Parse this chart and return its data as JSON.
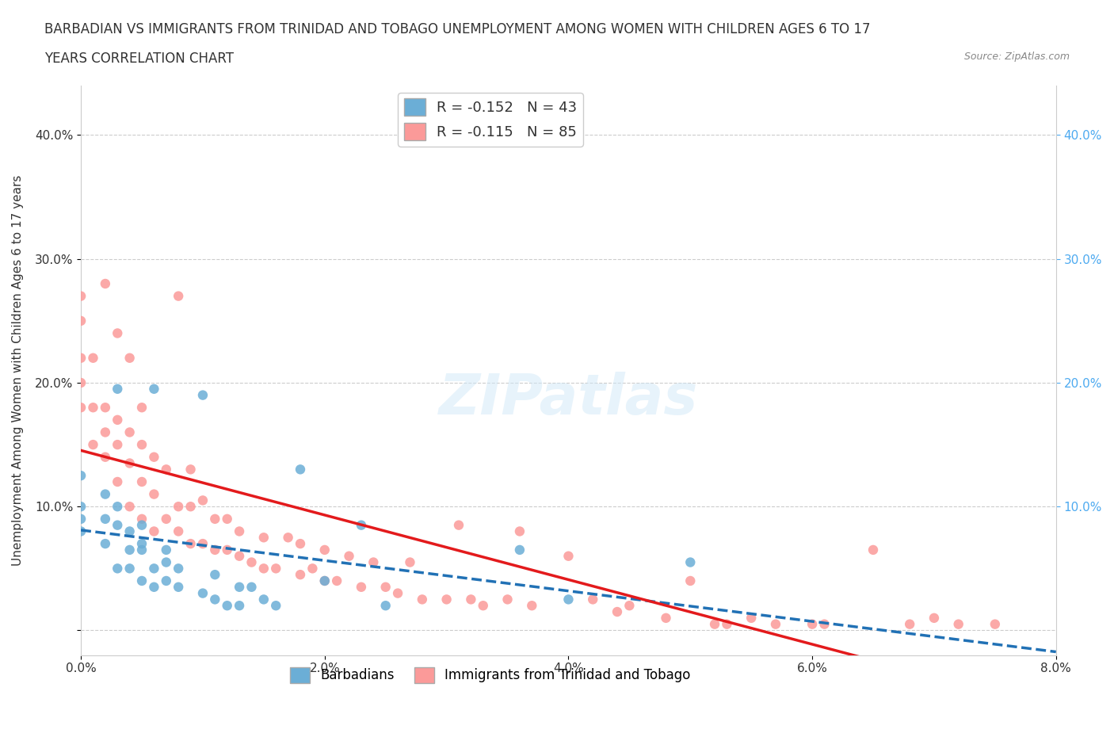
{
  "title_line1": "BARBADIAN VS IMMIGRANTS FROM TRINIDAD AND TOBAGO UNEMPLOYMENT AMONG WOMEN WITH CHILDREN AGES 6 TO 17",
  "title_line2": "YEARS CORRELATION CHART",
  "source": "Source: ZipAtlas.com",
  "xlabel": "",
  "ylabel": "Unemployment Among Women with Children Ages 6 to 17 years",
  "xlim": [
    0.0,
    0.08
  ],
  "ylim": [
    -0.02,
    0.44
  ],
  "xticks": [
    0.0,
    0.02,
    0.04,
    0.06,
    0.08
  ],
  "xticklabels": [
    "0.0%",
    "2.0%",
    "4.0%",
    "6.0%",
    "8.0%"
  ],
  "yticks": [
    0.0,
    0.1,
    0.2,
    0.3,
    0.4
  ],
  "yticklabels": [
    "",
    "10.0%",
    "20.0%",
    "30.0%",
    "40.0%"
  ],
  "right_yticks": [
    0.1,
    0.2,
    0.3,
    0.4
  ],
  "right_yticklabels": [
    "10.0%",
    "20.0%",
    "30.0%",
    "40.0%"
  ],
  "barbadian_color": "#6baed6",
  "trinidad_color": "#fb9a99",
  "barbadian_line_color": "#2171b5",
  "trinidad_line_color": "#e31a1c",
  "barbadian_R": -0.152,
  "barbadian_N": 43,
  "trinidad_R": -0.115,
  "trinidad_N": 85,
  "legend_label_1": "Barbadians",
  "legend_label_2": "Immigrants from Trinidad and Tobago",
  "watermark": "ZIPatlas",
  "barbadian_x": [
    0.0,
    0.0,
    0.0,
    0.0,
    0.002,
    0.002,
    0.002,
    0.003,
    0.003,
    0.003,
    0.003,
    0.004,
    0.004,
    0.004,
    0.005,
    0.005,
    0.005,
    0.005,
    0.006,
    0.006,
    0.006,
    0.007,
    0.007,
    0.007,
    0.008,
    0.008,
    0.01,
    0.01,
    0.011,
    0.011,
    0.012,
    0.013,
    0.013,
    0.014,
    0.015,
    0.016,
    0.018,
    0.02,
    0.023,
    0.025,
    0.036,
    0.04,
    0.05
  ],
  "barbadian_y": [
    0.08,
    0.09,
    0.1,
    0.125,
    0.07,
    0.09,
    0.11,
    0.05,
    0.085,
    0.1,
    0.195,
    0.05,
    0.065,
    0.08,
    0.04,
    0.065,
    0.07,
    0.085,
    0.035,
    0.05,
    0.195,
    0.04,
    0.055,
    0.065,
    0.035,
    0.05,
    0.03,
    0.19,
    0.025,
    0.045,
    0.02,
    0.02,
    0.035,
    0.035,
    0.025,
    0.02,
    0.13,
    0.04,
    0.085,
    0.02,
    0.065,
    0.025,
    0.055
  ],
  "trinidad_x": [
    0.0,
    0.0,
    0.0,
    0.0,
    0.0,
    0.001,
    0.001,
    0.001,
    0.002,
    0.002,
    0.002,
    0.002,
    0.003,
    0.003,
    0.003,
    0.003,
    0.004,
    0.004,
    0.004,
    0.004,
    0.005,
    0.005,
    0.005,
    0.005,
    0.006,
    0.006,
    0.006,
    0.007,
    0.007,
    0.008,
    0.008,
    0.008,
    0.009,
    0.009,
    0.009,
    0.01,
    0.01,
    0.011,
    0.011,
    0.012,
    0.012,
    0.013,
    0.013,
    0.014,
    0.015,
    0.015,
    0.016,
    0.017,
    0.018,
    0.018,
    0.019,
    0.02,
    0.02,
    0.021,
    0.022,
    0.023,
    0.024,
    0.025,
    0.026,
    0.027,
    0.028,
    0.03,
    0.031,
    0.032,
    0.033,
    0.035,
    0.036,
    0.037,
    0.04,
    0.042,
    0.044,
    0.045,
    0.048,
    0.05,
    0.052,
    0.053,
    0.055,
    0.057,
    0.06,
    0.061,
    0.065,
    0.068,
    0.07,
    0.072,
    0.075
  ],
  "trinidad_y": [
    0.18,
    0.2,
    0.22,
    0.25,
    0.27,
    0.15,
    0.18,
    0.22,
    0.14,
    0.16,
    0.18,
    0.28,
    0.12,
    0.15,
    0.17,
    0.24,
    0.1,
    0.135,
    0.16,
    0.22,
    0.09,
    0.12,
    0.15,
    0.18,
    0.08,
    0.11,
    0.14,
    0.09,
    0.13,
    0.08,
    0.1,
    0.27,
    0.07,
    0.1,
    0.13,
    0.07,
    0.105,
    0.065,
    0.09,
    0.065,
    0.09,
    0.06,
    0.08,
    0.055,
    0.05,
    0.075,
    0.05,
    0.075,
    0.045,
    0.07,
    0.05,
    0.04,
    0.065,
    0.04,
    0.06,
    0.035,
    0.055,
    0.035,
    0.03,
    0.055,
    0.025,
    0.025,
    0.085,
    0.025,
    0.02,
    0.025,
    0.08,
    0.02,
    0.06,
    0.025,
    0.015,
    0.02,
    0.01,
    0.04,
    0.005,
    0.005,
    0.01,
    0.005,
    0.005,
    0.005,
    0.065,
    0.005,
    0.01,
    0.005,
    0.005
  ]
}
